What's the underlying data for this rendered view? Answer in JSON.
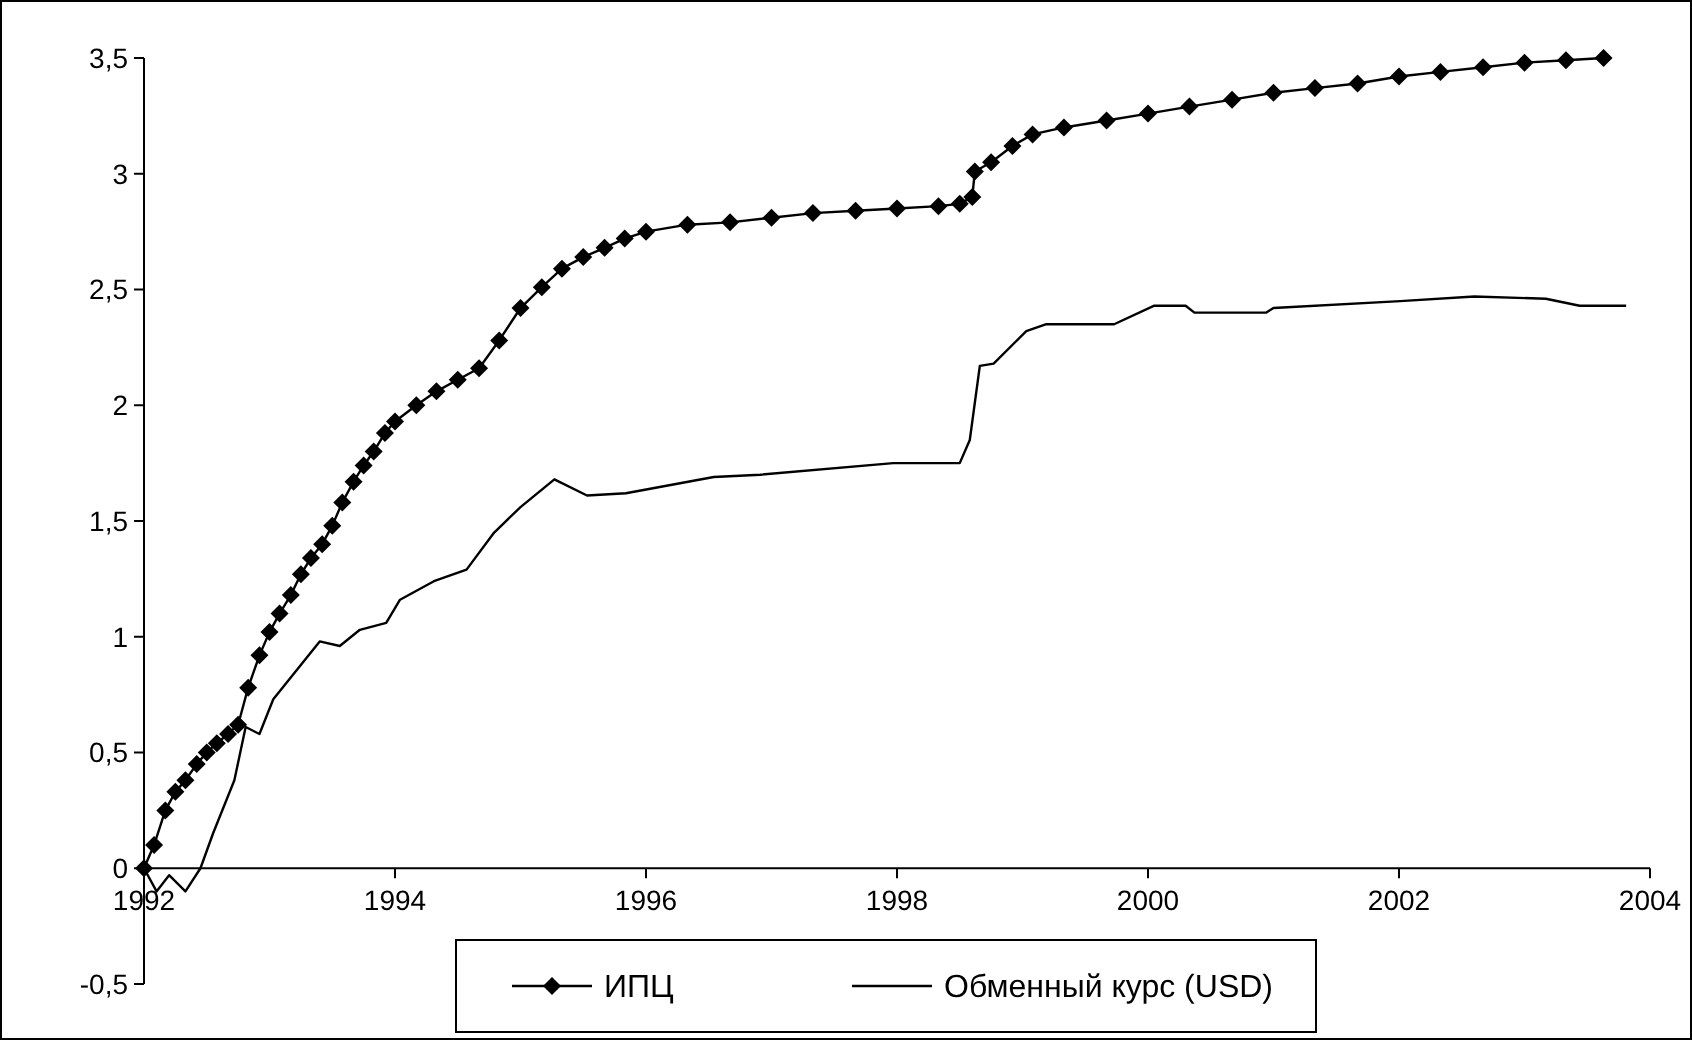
{
  "chart_data": {
    "type": "line",
    "xlim": [
      1992,
      2004
    ],
    "xticks": [
      1992,
      1994,
      1996,
      1998,
      2000,
      2002,
      2004
    ],
    "ylim": [
      -0.5,
      3.5
    ],
    "yticks": [
      {
        "value": -0.5,
        "label": "-0,5"
      },
      0,
      {
        "value": 0.5,
        "label": "0,5"
      },
      1,
      {
        "value": 1.5,
        "label": "1,5"
      },
      2,
      {
        "value": 2.5,
        "label": "2,5"
      },
      3,
      {
        "value": 3.5,
        "label": "3,5"
      }
    ],
    "grid": false,
    "legend": "bottom",
    "line_style": "solid",
    "series": [
      {
        "name": "ИПЦ",
        "color": "#000000",
        "marker": "diamond",
        "x": [
          1992,
          1992.08,
          1992.17,
          1992.25,
          1992.33,
          1992.42,
          1992.5,
          1992.58,
          1992.67,
          1992.75,
          1992.83,
          1992.92,
          1993,
          1993.08,
          1993.17,
          1993.25,
          1993.33,
          1993.42,
          1993.5,
          1993.58,
          1993.67,
          1993.75,
          1993.83,
          1993.92,
          1994,
          1994.17,
          1994.33,
          1994.5,
          1994.67,
          1994.83,
          1995,
          1995.17,
          1995.33,
          1995.5,
          1995.67,
          1995.83,
          1996,
          1996.33,
          1996.67,
          1997,
          1997.33,
          1997.67,
          1998,
          1998.33,
          1998.5,
          1998.6,
          1998.62,
          1998.75,
          1998.92,
          1999.08,
          1999.33,
          1999.67,
          2000,
          2000.33,
          2000.67,
          2001,
          2001.33,
          2001.67,
          2002,
          2002.33,
          2002.67,
          2003,
          2003.33,
          2003.63
        ],
        "values": [
          0,
          0.1,
          0.25,
          0.33,
          0.38,
          0.45,
          0.5,
          0.54,
          0.58,
          0.62,
          0.78,
          0.92,
          1.02,
          1.1,
          1.18,
          1.27,
          1.34,
          1.4,
          1.48,
          1.58,
          1.67,
          1.74,
          1.8,
          1.88,
          1.93,
          2,
          2.06,
          2.11,
          2.16,
          2.28,
          2.42,
          2.51,
          2.59,
          2.64,
          2.68,
          2.72,
          2.75,
          2.78,
          2.79,
          2.81,
          2.83,
          2.84,
          2.85,
          2.86,
          2.87,
          2.9,
          3.01,
          3.05,
          3.12,
          3.17,
          3.2,
          3.23,
          3.26,
          3.29,
          3.32,
          3.35,
          3.37,
          3.39,
          3.42,
          3.44,
          3.46,
          3.48,
          3.49,
          3.5
        ]
      },
      {
        "name": "Обменный курс (USD)",
        "color": "#000000",
        "marker": "none",
        "x": [
          1992,
          1992.1,
          1992.2,
          1992.33,
          1992.45,
          1992.55,
          1992.72,
          1992.81,
          1992.92,
          1993.03,
          1993.4,
          1993.56,
          1993.72,
          1993.93,
          1994.04,
          1994.31,
          1994.57,
          1994.79,
          1995,
          1995.27,
          1995.53,
          1995.84,
          1996.54,
          1996.91,
          1997.97,
          1998.5,
          1998.58,
          1998.66,
          1998.77,
          1999.03,
          1999.19,
          1999.73,
          2000.05,
          2000.3,
          2000.37,
          2000.94,
          2001,
          2002.01,
          2002.6,
          2003.17,
          2003.44,
          2003.81
        ],
        "values": [
          0,
          -0.1,
          -0.03,
          -0.1,
          0,
          0.15,
          0.38,
          0.61,
          0.58,
          0.73,
          0.98,
          0.96,
          1.03,
          1.06,
          1.16,
          1.24,
          1.29,
          1.45,
          1.56,
          1.68,
          1.61,
          1.62,
          1.69,
          1.7,
          1.75,
          1.75,
          1.85,
          2.17,
          2.18,
          2.32,
          2.35,
          2.35,
          2.43,
          2.43,
          2.4,
          2.4,
          2.42,
          2.45,
          2.47,
          2.46,
          2.43,
          2.43
        ]
      }
    ]
  }
}
